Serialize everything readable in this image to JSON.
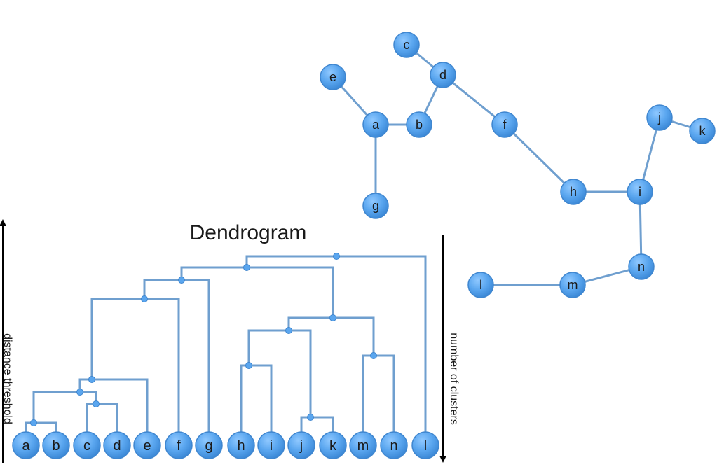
{
  "colors": {
    "line": "#6f9fcf",
    "node_fill": "#5aa6ef",
    "node_stroke": "#3f86cf",
    "arrow": "#000000",
    "text": "#1a1a1a"
  },
  "dendrogram": {
    "title": "Dendrogram",
    "left_axis_label": "distance threshold",
    "right_axis_label": "number of clusters",
    "leaves": [
      "a",
      "b",
      "c",
      "d",
      "e",
      "f",
      "g",
      "h",
      "i",
      "j",
      "k",
      "m",
      "n",
      "l"
    ]
  },
  "graph": {
    "nodes": [
      "c",
      "d",
      "e",
      "a",
      "b",
      "f",
      "j",
      "k",
      "h",
      "i",
      "g",
      "n",
      "l",
      "m"
    ],
    "edges": [
      [
        "c",
        "d"
      ],
      [
        "d",
        "b"
      ],
      [
        "d",
        "f"
      ],
      [
        "e",
        "a"
      ],
      [
        "a",
        "b"
      ],
      [
        "a",
        "g"
      ],
      [
        "f",
        "h"
      ],
      [
        "h",
        "i"
      ],
      [
        "i",
        "j"
      ],
      [
        "j",
        "k"
      ],
      [
        "i",
        "n"
      ],
      [
        "n",
        "m"
      ],
      [
        "m",
        "l"
      ]
    ]
  }
}
